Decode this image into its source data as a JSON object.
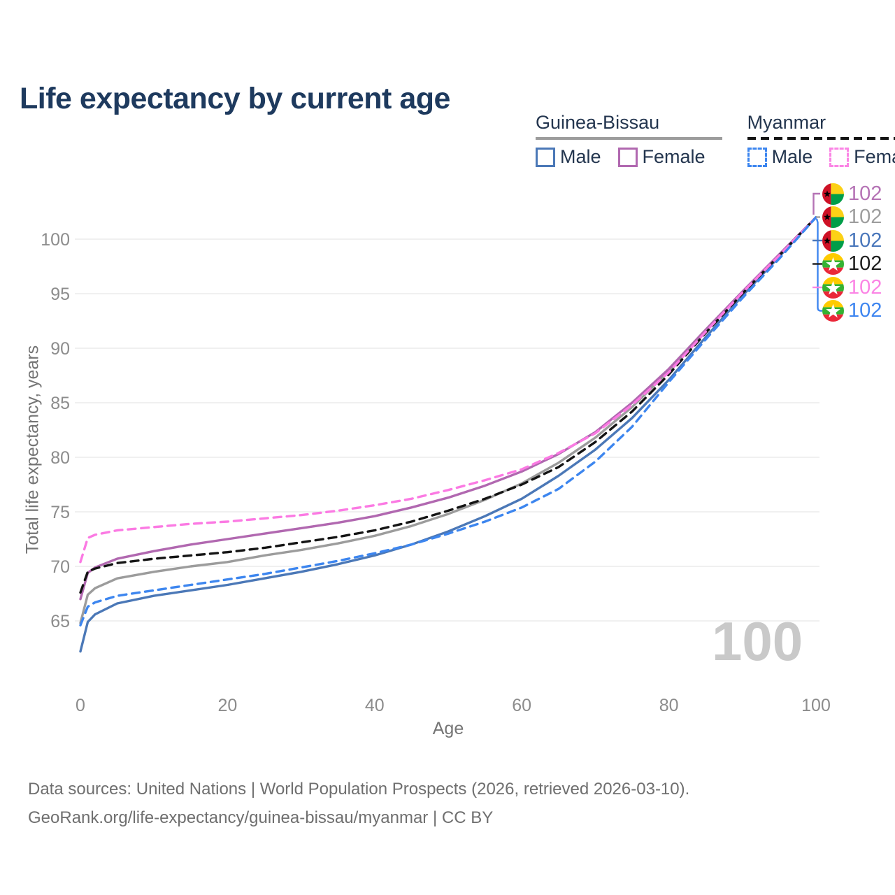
{
  "title": "Life expectancy by current age",
  "colors": {
    "title_text": "#1e3a5e",
    "legend_text": "#24364f",
    "axis_text": "#8c8c8c",
    "axis_title_text": "#757575",
    "grid": "#ececec",
    "watermark_text": "#c9c9c9",
    "footer_text": "#6f6f6f"
  },
  "legend": {
    "groups": [
      {
        "name": "Guinea-Bissau",
        "line_style": "solid",
        "underline_color": "#9c9c9c",
        "items": [
          {
            "label": "Male",
            "color": "#4b78b7",
            "dashed": false
          },
          {
            "label": "Female",
            "color": "#b168b0",
            "dashed": false
          }
        ]
      },
      {
        "name": "Myanmar",
        "line_style": "dashed",
        "underline_color": "#141414",
        "items": [
          {
            "label": "Male",
            "color": "#3d86ef",
            "dashed": true
          },
          {
            "label": "Female",
            "color": "#fb85e5",
            "dashed": true
          }
        ]
      }
    ]
  },
  "chart_data": {
    "type": "line",
    "title": "Life expectancy by current age",
    "xlabel": "Age",
    "ylabel": "Total life expectancy, years",
    "xlim": [
      0,
      100
    ],
    "ylim": [
      62,
      103
    ],
    "x_ticks": [
      0,
      20,
      40,
      60,
      80,
      100
    ],
    "y_ticks": [
      65,
      70,
      75,
      80,
      85,
      90,
      95,
      100
    ],
    "grid": "horizontal",
    "legend_position": "top-right",
    "ages": [
      0,
      1,
      2,
      5,
      10,
      15,
      20,
      25,
      30,
      35,
      40,
      45,
      50,
      55,
      60,
      65,
      70,
      75,
      80,
      85,
      90,
      95,
      100
    ],
    "series": [
      {
        "name": "Guinea-Bissau Both sexes",
        "country": "Guinea-Bissau",
        "color": "#9c9c9c",
        "dashed": false,
        "values": [
          64.8,
          67.4,
          68.0,
          68.9,
          69.5,
          70.0,
          70.4,
          71.0,
          71.5,
          72.1,
          72.8,
          73.7,
          74.8,
          76.1,
          77.6,
          79.5,
          81.8,
          84.6,
          87.9,
          91.6,
          95.1,
          98.5,
          102
        ]
      },
      {
        "name": "Guinea-Bissau Male",
        "country": "Guinea-Bissau",
        "color": "#4b78b7",
        "dashed": false,
        "values": [
          62.2,
          64.9,
          65.6,
          66.6,
          67.3,
          67.8,
          68.3,
          68.9,
          69.5,
          70.2,
          71.0,
          72.0,
          73.2,
          74.6,
          76.2,
          78.3,
          80.7,
          83.6,
          87.1,
          91.0,
          94.8,
          98.4,
          102
        ]
      },
      {
        "name": "Guinea-Bissau Female",
        "country": "Guinea-Bissau",
        "color": "#b168b0",
        "dashed": false,
        "values": [
          67.0,
          69.4,
          69.9,
          70.7,
          71.4,
          72.0,
          72.5,
          73.0,
          73.5,
          74.0,
          74.6,
          75.4,
          76.3,
          77.4,
          78.7,
          80.3,
          82.3,
          85.0,
          88.1,
          91.7,
          95.2,
          98.6,
          102
        ]
      },
      {
        "name": "Myanmar Both sexes",
        "country": "Myanmar",
        "color": "#141414",
        "dashed": true,
        "values": [
          67.6,
          69.5,
          69.8,
          70.3,
          70.7,
          71.0,
          71.3,
          71.7,
          72.2,
          72.7,
          73.3,
          74.1,
          75.1,
          76.2,
          77.5,
          79.1,
          81.4,
          84.2,
          87.6,
          91.4,
          95.0,
          98.5,
          102
        ]
      },
      {
        "name": "Myanmar Female",
        "country": "Myanmar",
        "color": "#fb7ae3",
        "dashed": true,
        "values": [
          70.4,
          72.6,
          72.9,
          73.3,
          73.6,
          73.9,
          74.1,
          74.4,
          74.7,
          75.1,
          75.6,
          76.2,
          77.0,
          77.9,
          78.9,
          80.4,
          82.2,
          84.8,
          87.8,
          91.5,
          95.1,
          98.5,
          102
        ]
      },
      {
        "name": "Myanmar Male",
        "country": "Myanmar",
        "color": "#3d86ef",
        "dashed": true,
        "values": [
          64.6,
          66.3,
          66.7,
          67.3,
          67.8,
          68.3,
          68.8,
          69.3,
          69.9,
          70.5,
          71.2,
          72.0,
          73.0,
          74.1,
          75.4,
          77.1,
          79.6,
          82.8,
          86.9,
          90.8,
          94.6,
          98.2,
          102
        ]
      }
    ]
  },
  "end_labels": [
    {
      "series": "guinea-bissau-female",
      "flag": "guinea-bissau",
      "value": "102",
      "color": "#b573b5"
    },
    {
      "series": "guinea-bissau-both",
      "flag": "guinea-bissau",
      "value": "102",
      "color": "#9e9e9e"
    },
    {
      "series": "guinea-bissau-male",
      "flag": "guinea-bissau",
      "value": "102",
      "color": "#4a77bb"
    },
    {
      "series": "myanmar-both",
      "flag": "myanmar",
      "value": "102",
      "color": "#1d1d1d"
    },
    {
      "series": "myanmar-female",
      "flag": "myanmar",
      "value": "102",
      "color": "#fb85e5"
    },
    {
      "series": "myanmar-male",
      "flag": "myanmar",
      "value": "102",
      "color": "#3f86f0"
    }
  ],
  "watermark": "100",
  "footer": {
    "line1": "Data sources: United Nations | World Population Prospects (2026, retrieved 2026-03-10).",
    "line2": "GeoRank.org/life-expectancy/guinea-bissau/myanmar | CC BY"
  }
}
